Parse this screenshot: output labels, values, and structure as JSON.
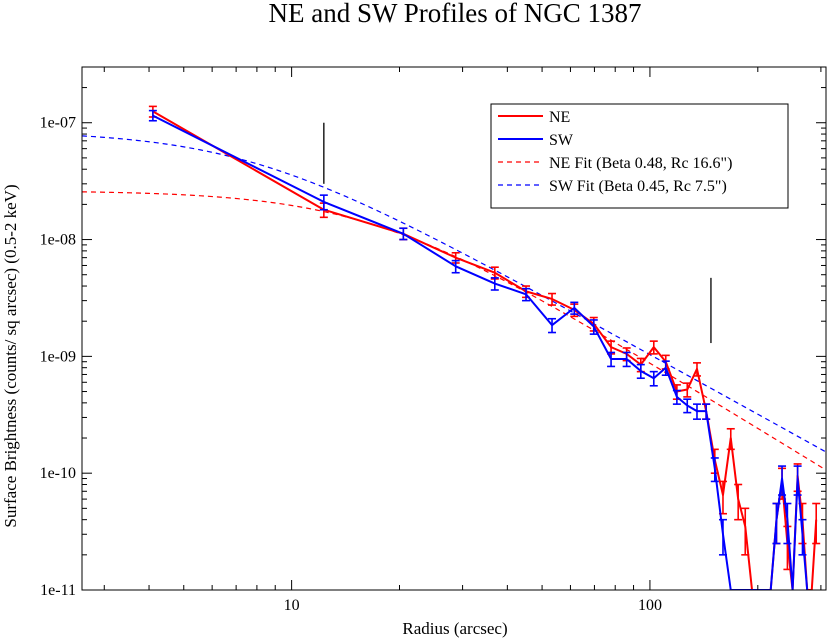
{
  "chart_data": {
    "type": "line",
    "title": "NE and SW Profiles of NGC 1387",
    "xlabel": "Radius (arcsec)",
    "ylabel": "Surface Brightness (counts/ sq arcsec) (0.5-2 keV)",
    "xscale": "log",
    "yscale": "log",
    "xlim": [
      2.6,
      310
    ],
    "ylim": [
      1e-11,
      3e-07
    ],
    "x_ticks": [
      10,
      100
    ],
    "x_tick_labels": [
      "10",
      "100"
    ],
    "y_ticks": [
      1e-11,
      1e-10,
      1e-09,
      1e-08,
      1e-07
    ],
    "y_tick_labels": [
      "1e-11",
      "1e-10",
      "1e-09",
      "1e-08",
      "1e-07"
    ],
    "legend_position": "top-right",
    "series": [
      {
        "name": "NE",
        "color": "#ff0000",
        "style": "solid",
        "points": [
          [
            4.1,
            1.25e-07,
            1.12e-07,
            1.38e-07
          ],
          [
            12.3,
            1.8e-08,
            1.55e-08,
            2.05e-08
          ],
          [
            20.5,
            1.12e-08,
            1e-08,
            1.25e-08
          ],
          [
            28.7,
            7e-09,
            6.3e-09,
            7.7e-09
          ],
          [
            36.9,
            5.2e-09,
            4.6e-09,
            5.8e-09
          ],
          [
            45.1,
            3.6e-09,
            3.2e-09,
            4e-09
          ],
          [
            53.3,
            3.1e-09,
            2.75e-09,
            3.45e-09
          ],
          [
            61.5,
            2.5e-09,
            2.2e-09,
            2.8e-09
          ],
          [
            69.7,
            1.9e-09,
            1.65e-09,
            2.15e-09
          ],
          [
            77.9,
            1.2e-09,
            1.05e-09,
            1.35e-09
          ],
          [
            86.1,
            1.05e-09,
            9.2e-10,
            1.18e-09
          ],
          [
            94.3,
            8.5e-10,
            7.4e-10,
            9.6e-10
          ],
          [
            102.5,
            1.2e-09,
            1.05e-09,
            1.35e-09
          ],
          [
            110.7,
            9e-10,
            7.8e-10,
            1.02e-09
          ],
          [
            118.9,
            5e-10,
            4.3e-10,
            5.7e-10
          ],
          [
            127.1,
            5.2e-10,
            4.5e-10,
            5.9e-10
          ],
          [
            135.3,
            7.8e-10,
            6.8e-10,
            8.8e-10
          ],
          [
            143.5,
            3.4e-10,
            2.9e-10,
            3.9e-10
          ],
          [
            151.7,
            1.3e-10,
            1e-10,
            1.6e-10
          ],
          [
            159.9,
            6.5e-11,
            4.5e-11,
            8.5e-11
          ],
          [
            168.1,
            2e-10,
            1.6e-10,
            2.4e-10
          ],
          [
            176.3,
            6e-11,
            4e-11,
            8e-11
          ],
          [
            184.5,
            3.5e-11,
            2e-11,
            5e-11
          ],
          [
            192.7,
            1e-11,
            1e-11,
            1.2e-11
          ],
          [
            200.9,
            1e-11,
            1e-11,
            1.2e-11
          ],
          [
            209.1,
            1e-11,
            1e-11,
            1.2e-11
          ],
          [
            217.3,
            1e-11,
            1e-11,
            1.2e-11
          ],
          [
            225.5,
            4e-11,
            2.5e-11,
            5.5e-11
          ],
          [
            233.7,
            8.5e-11,
            6e-11,
            1.1e-10
          ],
          [
            241.9,
            2.5e-11,
            1.5e-11,
            3.5e-11
          ],
          [
            250.1,
            1e-11,
            1e-11,
            1.2e-11
          ],
          [
            258.3,
            9.5e-11,
            7e-11,
            1.2e-10
          ],
          [
            266.5,
            4e-11,
            2.5e-11,
            5.5e-11
          ],
          [
            274.7,
            1e-11,
            1e-11,
            1.2e-11
          ],
          [
            282.9,
            1e-11,
            1e-11,
            1.2e-11
          ],
          [
            291.1,
            4e-11,
            2.5e-11,
            5.5e-11
          ]
        ]
      },
      {
        "name": "SW",
        "color": "#0000ff",
        "style": "solid",
        "points": [
          [
            4.1,
            1.15e-07,
            1.04e-07,
            1.27e-07
          ],
          [
            12.3,
            2.1e-08,
            1.8e-08,
            2.4e-08
          ],
          [
            20.5,
            1.12e-08,
            1e-08,
            1.25e-08
          ],
          [
            28.7,
            5.9e-09,
            5.2e-09,
            6.6e-09
          ],
          [
            36.9,
            4.2e-09,
            3.7e-09,
            4.7e-09
          ],
          [
            45.1,
            3.4e-09,
            3e-09,
            3.8e-09
          ],
          [
            53.3,
            1.85e-09,
            1.6e-09,
            2.1e-09
          ],
          [
            61.5,
            2.6e-09,
            2.3e-09,
            2.9e-09
          ],
          [
            69.7,
            1.8e-09,
            1.55e-09,
            2.05e-09
          ],
          [
            77.9,
            9.5e-10,
            8.2e-10,
            1.08e-09
          ],
          [
            86.1,
            9.5e-10,
            8.2e-10,
            1.08e-09
          ],
          [
            94.3,
            7.5e-10,
            6.5e-10,
            8.5e-10
          ],
          [
            102.5,
            6.5e-10,
            5.6e-10,
            7.4e-10
          ],
          [
            110.7,
            8e-10,
            6.9e-10,
            9.1e-10
          ],
          [
            118.9,
            4.5e-10,
            3.9e-10,
            5.1e-10
          ],
          [
            127.1,
            3.8e-10,
            3.3e-10,
            4.3e-10
          ],
          [
            135.3,
            3.4e-10,
            2.9e-10,
            3.9e-10
          ],
          [
            143.5,
            3.4e-10,
            2.9e-10,
            3.9e-10
          ],
          [
            151.7,
            1.1e-10,
            8.5e-11,
            1.35e-10
          ],
          [
            159.9,
            3e-11,
            2e-11,
            4e-11
          ],
          [
            168.1,
            1e-11,
            1e-11,
            1.2e-11
          ],
          [
            176.3,
            1e-11,
            1e-11,
            1.2e-11
          ],
          [
            184.5,
            1e-11,
            1e-11,
            1.2e-11
          ],
          [
            192.7,
            1e-11,
            1e-11,
            1.2e-11
          ],
          [
            200.9,
            1e-11,
            1e-11,
            1.2e-11
          ],
          [
            209.1,
            1e-11,
            1e-11,
            1.2e-11
          ],
          [
            217.3,
            1e-11,
            1e-11,
            1.2e-11
          ],
          [
            225.5,
            4e-11,
            2.5e-11,
            5.5e-11
          ],
          [
            233.7,
            9e-11,
            6.5e-11,
            1.15e-10
          ],
          [
            241.9,
            4e-11,
            2.5e-11,
            5.5e-11
          ],
          [
            250.1,
            1e-11,
            1e-11,
            1.2e-11
          ],
          [
            258.3,
            9e-11,
            6.5e-11,
            1.15e-10
          ],
          [
            266.5,
            3e-11,
            2e-11,
            4e-11
          ],
          [
            274.7,
            1e-11,
            1e-11,
            1.2e-11
          ]
        ]
      },
      {
        "name": "NE Fit (Beta 0.48, Rc 16.6\")",
        "color": "#ff0000",
        "style": "dashed",
        "model": {
          "amplitude": 2.62e-08,
          "core_radius": 16.6,
          "beta": 0.48
        }
      },
      {
        "name": "SW Fit (Beta 0.45, Rc 7.5\")",
        "color": "#0000ff",
        "style": "dashed",
        "model": {
          "amplitude": 8.5e-08,
          "core_radius": 7.5,
          "beta": 0.45
        }
      }
    ],
    "annotations": [
      {
        "type": "vertical-marker",
        "x": 12.3,
        "y_range": [
          3e-08,
          1e-07
        ]
      },
      {
        "type": "vertical-marker",
        "x": 148,
        "y_range": [
          1.3e-09,
          4.7e-09
        ]
      }
    ]
  }
}
